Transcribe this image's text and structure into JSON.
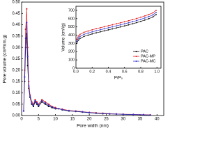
{
  "chart_data": [
    {
      "type": "line",
      "xlabel": "Pore width (nm)",
      "ylabel": "Pore volume (cm³/nm.g)",
      "x": [
        0.6,
        0.9,
        1.2,
        1.5,
        1.8,
        2.1,
        2.5,
        3,
        3.5,
        4,
        4.5,
        5,
        6,
        7,
        8,
        9,
        10,
        11,
        12,
        14,
        16,
        18,
        20,
        22,
        24,
        26,
        28,
        30,
        33,
        36,
        38
      ],
      "series": [
        {
          "name": "PAC",
          "color": "#000000",
          "values": [
            0.02,
            0.15,
            0.3,
            0.36,
            0.22,
            0.12,
            0.08,
            0.05,
            0.04,
            0.06,
            0.05,
            0.04,
            0.06,
            0.05,
            0.04,
            0.035,
            0.03,
            0.03,
            0.025,
            0.02,
            0.018,
            0.015,
            0.012,
            0.01,
            0.008,
            0.007,
            0.006,
            0.005,
            0.004,
            0.003,
            0.002
          ]
        },
        {
          "name": "PAC-MP",
          "color": "#e41a1c",
          "values": [
            0.02,
            0.2,
            0.38,
            0.47,
            0.3,
            0.15,
            0.09,
            0.06,
            0.05,
            0.07,
            0.06,
            0.05,
            0.07,
            0.06,
            0.05,
            0.04,
            0.035,
            0.03,
            0.028,
            0.022,
            0.02,
            0.017,
            0.014,
            0.012,
            0.01,
            0.008,
            0.007,
            0.006,
            0.005,
            0.004,
            0.003
          ]
        },
        {
          "name": "PAC-MC",
          "color": "#3333cc",
          "values": [
            0.02,
            0.17,
            0.34,
            0.41,
            0.26,
            0.13,
            0.085,
            0.055,
            0.045,
            0.065,
            0.055,
            0.045,
            0.065,
            0.055,
            0.045,
            0.038,
            0.032,
            0.03,
            0.026,
            0.021,
            0.019,
            0.016,
            0.013,
            0.011,
            0.009,
            0.0075,
            0.0065,
            0.0055,
            0.0045,
            0.0035,
            0.0025
          ]
        }
      ],
      "xlim": [
        0,
        42
      ],
      "xticks": [
        0,
        5,
        10,
        15,
        20,
        25,
        30,
        35,
        40
      ],
      "ylim": [
        0,
        0.5
      ],
      "yticks": [
        {
          "value": 0,
          "label": "0.00"
        },
        {
          "value": 0.05,
          "label": "0.05"
        },
        {
          "value": 0.1,
          "label": "0.10"
        },
        {
          "value": 0.15,
          "label": "0.15"
        },
        {
          "value": 0.2,
          "label": "0.20"
        },
        {
          "value": 0.25,
          "label": "0.25"
        },
        {
          "value": 0.3,
          "label": "0.30"
        },
        {
          "value": 0.35,
          "label": "0.35"
        },
        {
          "value": 0.4,
          "label": "0.40"
        },
        {
          "value": 0.45,
          "label": "0.45"
        },
        {
          "value": 0.5,
          "label": "0.50"
        }
      ]
    },
    {
      "type": "line",
      "xlabel": "P/P₀",
      "ylabel": "Volume (cm³/g)",
      "x": [
        0.01,
        0.03,
        0.05,
        0.1,
        0.15,
        0.2,
        0.25,
        0.3,
        0.35,
        0.4,
        0.45,
        0.5,
        0.55,
        0.6,
        0.65,
        0.7,
        0.75,
        0.8,
        0.85,
        0.9,
        0.95,
        0.99
      ],
      "series": [
        {
          "name": "PAC",
          "color": "#000000",
          "values": [
            300,
            340,
            360,
            385,
            400,
            415,
            428,
            440,
            452,
            464,
            476,
            488,
            500,
            512,
            525,
            538,
            552,
            567,
            583,
            600,
            620,
            650
          ]
        },
        {
          "name": "PAC-MP",
          "color": "#e41a1c",
          "values": [
            350,
            390,
            410,
            435,
            450,
            465,
            478,
            490,
            502,
            514,
            526,
            538,
            550,
            562,
            575,
            588,
            602,
            617,
            633,
            650,
            670,
            700
          ]
        },
        {
          "name": "PAC-MC",
          "color": "#3333cc",
          "values": [
            325,
            365,
            385,
            410,
            425,
            440,
            453,
            465,
            477,
            489,
            501,
            513,
            525,
            537,
            550,
            563,
            577,
            592,
            608,
            625,
            645,
            675
          ]
        }
      ],
      "xlim": [
        0,
        1.05
      ],
      "xticks": [
        {
          "value": 0,
          "label": "0.0"
        },
        {
          "value": 0.2,
          "label": "0.2"
        },
        {
          "value": 0.4,
          "label": "0.4"
        },
        {
          "value": 0.6,
          "label": "0.6"
        },
        {
          "value": 0.8,
          "label": "0.8"
        },
        {
          "value": 1,
          "label": "1.0"
        }
      ],
      "ylim": [
        0,
        750
      ],
      "yticks": [
        0,
        100,
        200,
        300,
        400,
        500,
        600,
        700
      ],
      "legend": "lower right"
    }
  ]
}
